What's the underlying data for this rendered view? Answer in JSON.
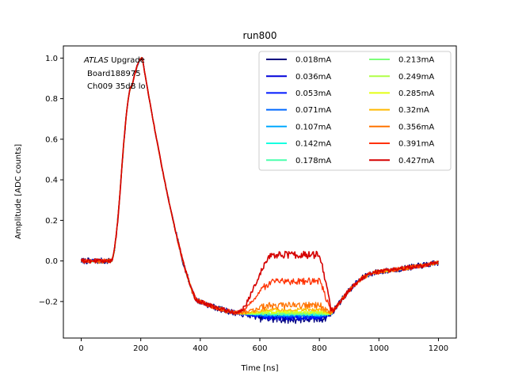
{
  "chart_data": {
    "type": "line",
    "title": "run800",
    "xlabel": "Time [ns]",
    "ylabel": "Amplitude [ADC counts]",
    "xlim": [
      -60,
      1260
    ],
    "ylim": [
      -0.38,
      1.06
    ],
    "xticks": [
      0,
      200,
      400,
      600,
      800,
      1000,
      1200
    ],
    "yticks": [
      -0.2,
      0.0,
      0.2,
      0.4,
      0.6,
      0.8,
      1.0
    ],
    "ytick_labels": [
      "−0.2",
      "0.0",
      "0.2",
      "0.4",
      "0.6",
      "0.8",
      "1.0"
    ],
    "annotation": {
      "italic": "ATLAS",
      "line1_rest": " Upgrade",
      "line2": "Board188975",
      "line3": "Ch009 35dB lo"
    },
    "legend_position": "top-right",
    "series": [
      {
        "name": "0.018mA",
        "color": "#00007f",
        "plateau": -0.285
      },
      {
        "name": "0.036mA",
        "color": "#0000d9",
        "plateau": -0.28
      },
      {
        "name": "0.053mA",
        "color": "#0019ff",
        "plateau": -0.275
      },
      {
        "name": "0.071mA",
        "color": "#0069ff",
        "plateau": -0.27
      },
      {
        "name": "0.107mA",
        "color": "#00a9ff",
        "plateau": -0.265
      },
      {
        "name": "0.142mA",
        "color": "#16ffe1",
        "plateau": -0.262
      },
      {
        "name": "0.178mA",
        "color": "#4affad",
        "plateau": -0.26
      },
      {
        "name": "0.213mA",
        "color": "#7dff7a",
        "plateau": -0.258
      },
      {
        "name": "0.249mA",
        "color": "#b0ff46",
        "plateau": -0.255
      },
      {
        "name": "0.285mA",
        "color": "#e4ff13",
        "plateau": -0.25
      },
      {
        "name": "0.32mA",
        "color": "#ffb900",
        "plateau": -0.24
      },
      {
        "name": "0.356mA",
        "color": "#ff7300",
        "plateau": -0.22
      },
      {
        "name": "0.391mA",
        "color": "#ff3000",
        "plateau": -0.1
      },
      {
        "name": "0.427mA",
        "color": "#d50000",
        "plateau": 0.03
      }
    ]
  }
}
